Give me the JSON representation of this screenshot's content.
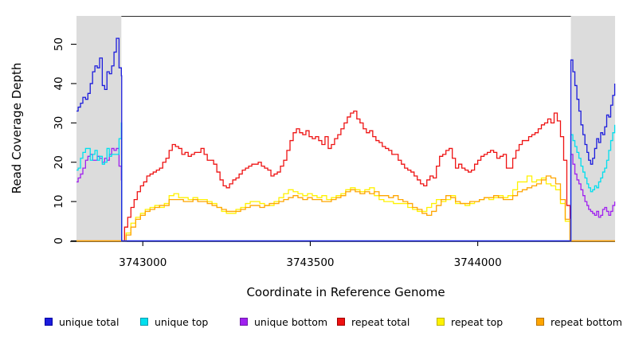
{
  "chart_data": {
    "type": "line",
    "step_interpolation": true,
    "title": "",
    "xlabel": "Coordinate in Reference Genome",
    "ylabel": "Read Coverage Depth",
    "xlim": [
      3742802,
      3744410
    ],
    "ylim": [
      0,
      57.2
    ],
    "x_ticks": [
      3743000,
      3743500,
      3744000
    ],
    "y_ticks": [
      0,
      10,
      20,
      30,
      40,
      50
    ],
    "grid": false,
    "legend_position": "bottom",
    "background": "#ffffff",
    "shade_color": "#dcdcdc",
    "shaded_regions": [
      {
        "x0": 3742802,
        "x1": 3742936
      },
      {
        "x0": 3744278,
        "x1": 3744410
      }
    ],
    "series": [
      {
        "name": "unique total",
        "color": "#1c1cdd",
        "legend_border": "#0000a0",
        "x": [
          3742802,
          3742807,
          3742814,
          3742821,
          3742829,
          3742836,
          3742843,
          3742850,
          3742857,
          3742864,
          3742871,
          3742879,
          3742886,
          3742893,
          3742900,
          3742907,
          3742914,
          3742921,
          3742929,
          3742936,
          3742937,
          3744277,
          3744278,
          3744284,
          3744290,
          3744296,
          3744302,
          3744308,
          3744314,
          3744320,
          3744326,
          3744331,
          3744337,
          3744343,
          3744349,
          3744355,
          3744361,
          3744367,
          3744373,
          3744379,
          3744385,
          3744391,
          3744397,
          3744403,
          3744409
        ],
        "y": [
          33,
          34,
          35,
          36.5,
          36,
          37.5,
          40,
          43,
          44.5,
          44,
          46.5,
          39.5,
          38.5,
          43,
          42.5,
          44.5,
          48,
          51.5,
          44,
          42,
          0,
          0,
          46,
          43,
          39.5,
          36,
          33,
          29.5,
          27,
          24.5,
          22.5,
          20.5,
          19.5,
          21,
          23.5,
          26,
          25,
          27.5,
          27,
          29,
          32,
          31.5,
          34.5,
          37,
          40
        ]
      },
      {
        "name": "unique top",
        "color": "#00dfee",
        "legend_border": "#009aae",
        "x": [
          3742802,
          3742807,
          3742814,
          3742821,
          3742829,
          3742836,
          3742843,
          3742850,
          3742857,
          3742864,
          3742871,
          3742879,
          3742886,
          3742893,
          3742900,
          3742907,
          3742914,
          3742921,
          3742929,
          3742936,
          3742937,
          3744277,
          3744278,
          3744284,
          3744290,
          3744296,
          3744302,
          3744308,
          3744314,
          3744320,
          3744326,
          3744331,
          3744337,
          3744343,
          3744349,
          3744355,
          3744361,
          3744367,
          3744373,
          3744379,
          3744385,
          3744391,
          3744397,
          3744403,
          3744409
        ],
        "y": [
          18,
          18.5,
          21,
          22.5,
          23.5,
          23.5,
          20.5,
          22,
          23,
          20.5,
          21.5,
          19.5,
          20,
          23.5,
          21.5,
          22,
          22,
          22,
          26,
          30,
          0,
          0,
          27,
          25.5,
          24,
          22.5,
          21,
          19,
          17.5,
          16,
          14.5,
          13.5,
          12.5,
          13,
          14,
          13.5,
          15,
          16,
          17.5,
          18.5,
          20.5,
          23,
          25.5,
          27.5,
          29.5
        ]
      },
      {
        "name": "unique bottom",
        "color": "#a020f0",
        "legend_border": "#6e1aa8",
        "x": [
          3742802,
          3742807,
          3742814,
          3742821,
          3742829,
          3742836,
          3742843,
          3742850,
          3742857,
          3742864,
          3742871,
          3742879,
          3742886,
          3742893,
          3742900,
          3742907,
          3742914,
          3742921,
          3742929,
          3742936,
          3742937,
          3744277,
          3744278,
          3744284,
          3744290,
          3744296,
          3744302,
          3744308,
          3744314,
          3744320,
          3744326,
          3744331,
          3744337,
          3744343,
          3744349,
          3744355,
          3744361,
          3744367,
          3744373,
          3744379,
          3744385,
          3744391,
          3744397,
          3744403,
          3744409
        ],
        "y": [
          15,
          16,
          17,
          18.5,
          20.5,
          21.5,
          22,
          20.5,
          20.5,
          21.5,
          21,
          20,
          21,
          20.5,
          22,
          23.5,
          23,
          23.5,
          19,
          15.5,
          0,
          0,
          22,
          19.5,
          17,
          15.5,
          14.5,
          13,
          11.5,
          10,
          9,
          8,
          7.5,
          7,
          6.5,
          7.5,
          6,
          6.5,
          8,
          8.5,
          7.5,
          6.5,
          7.5,
          9,
          10
        ]
      },
      {
        "name": "repeat total",
        "color": "#ee1111",
        "legend_border": "#a00000",
        "x_start": 3742936,
        "x_step": 9.5,
        "x_pre": 3742802,
        "x_post": 3744410,
        "values": [
          0,
          3.5,
          6,
          8.5,
          10.5,
          12.5,
          14,
          15,
          16.5,
          17,
          17.5,
          18,
          18.5,
          20,
          21,
          23,
          24.5,
          24,
          23.5,
          22,
          22.5,
          21.5,
          22,
          22.5,
          22.5,
          23.5,
          22,
          20.5,
          20.5,
          19.5,
          17.5,
          15.5,
          14,
          13.5,
          14.5,
          15.5,
          16,
          17,
          18,
          18.5,
          19,
          19.5,
          19.5,
          20,
          19,
          18.5,
          18,
          16.5,
          17,
          17.5,
          19,
          20.5,
          23,
          25.5,
          27.5,
          28.5,
          27.5,
          27,
          28,
          26.5,
          26,
          26.5,
          25.5,
          24.5,
          26.5,
          23.5,
          24.5,
          26,
          27,
          28.5,
          30,
          31.5,
          32.5,
          33,
          31,
          30,
          28.5,
          27.5,
          28,
          26.5,
          25.5,
          25,
          24,
          23.5,
          23,
          22,
          22,
          20.5,
          19.5,
          18.5,
          18,
          17.5,
          16.5,
          15.5,
          14.5,
          14,
          15.5,
          16.5,
          16,
          19,
          21.5,
          22,
          23,
          23.5,
          21,
          18.5,
          19.5,
          18.5,
          18,
          17.5,
          18,
          19.5,
          20.5,
          21.5,
          22,
          22.5,
          23,
          22.5,
          21,
          21.5,
          22,
          18.5,
          18.5,
          21,
          23,
          24.5,
          25.5,
          25.5,
          26.5,
          27,
          27.5,
          28.5,
          29.5,
          30,
          31,
          30,
          32.5,
          30.5,
          26.5,
          20.5,
          9,
          0
        ]
      },
      {
        "name": "repeat top",
        "color": "#fff200",
        "legend_border": "#bdb300",
        "x_start": 3742936,
        "x_step": 14.25,
        "x_pre": 3742802,
        "x_post": 3744410,
        "values": [
          0,
          2,
          4.5,
          6,
          7,
          8,
          8.5,
          9,
          8.5,
          9.5,
          11.5,
          12,
          11,
          11,
          10.5,
          11,
          10.5,
          10.5,
          10,
          9.5,
          8.5,
          7.5,
          7,
          7,
          8,
          8.5,
          9.5,
          10,
          10,
          9.5,
          9,
          9,
          10,
          11,
          12,
          13,
          12.5,
          12,
          11.5,
          12,
          11.5,
          11,
          11.5,
          10.5,
          11,
          11.5,
          12,
          13,
          13.5,
          13,
          12.5,
          13,
          13.5,
          11.5,
          10.5,
          10,
          10,
          9.5,
          9.5,
          9.5,
          8.5,
          8,
          7.5,
          7.5,
          8.5,
          9.5,
          10.5,
          10,
          10.5,
          11.5,
          9.5,
          9.5,
          9,
          9.5,
          10,
          10.5,
          11,
          10.5,
          11,
          11.5,
          11,
          11.5,
          13,
          15,
          15,
          16.5,
          15,
          15.5,
          16,
          14.5,
          14,
          13,
          9.5,
          5,
          0
        ]
      },
      {
        "name": "repeat bottom",
        "color": "#ffa500",
        "legend_border": "#b87400",
        "x_start": 3742936,
        "x_step": 14.25,
        "x_pre": 3742802,
        "x_post": 3744410,
        "values": [
          0,
          1.5,
          3.5,
          5.5,
          6.5,
          7.5,
          8,
          8.5,
          9,
          9,
          10.5,
          10.5,
          10.5,
          10,
          10,
          10.5,
          10,
          10,
          9.5,
          9,
          8.5,
          8,
          7.5,
          7.5,
          7.5,
          8,
          8.5,
          9,
          9,
          8.5,
          9,
          9.5,
          9.5,
          10,
          10.5,
          11,
          11.5,
          11,
          10.5,
          11,
          10.5,
          10.5,
          10,
          10,
          10.5,
          11,
          11.5,
          12.5,
          13,
          12.5,
          12,
          12.5,
          12,
          12.5,
          11.5,
          11.5,
          11,
          11.5,
          10.5,
          10,
          9.5,
          8.5,
          8,
          7,
          6.5,
          7.5,
          9,
          10.5,
          11.5,
          11,
          10,
          9.5,
          9.5,
          10,
          10,
          10.5,
          11,
          11,
          11.5,
          11,
          10.5,
          10.5,
          11.5,
          12.5,
          13,
          13.5,
          14,
          14.5,
          15.5,
          16.5,
          16,
          14.5,
          10.5,
          5.5,
          0
        ]
      }
    ]
  }
}
